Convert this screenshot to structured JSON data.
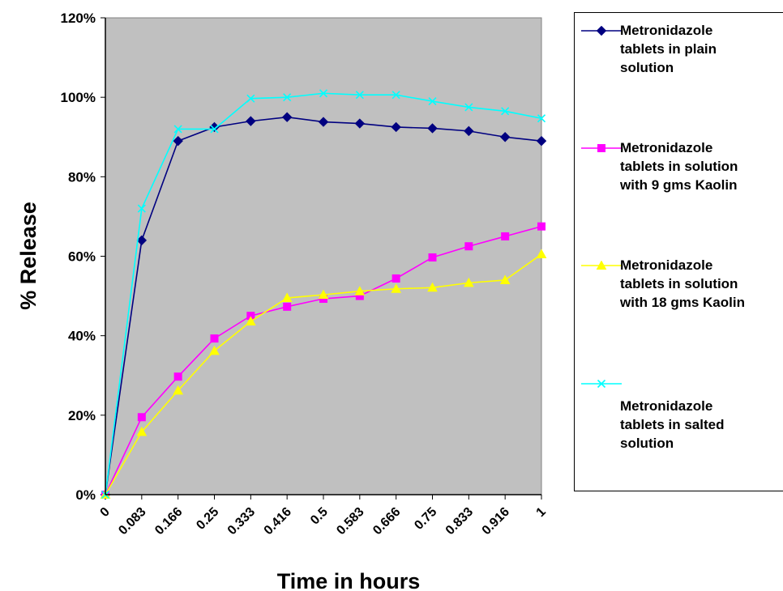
{
  "chart_data": {
    "type": "line",
    "xlabel": "Time in hours",
    "ylabel": "% Release",
    "categories": [
      "0",
      "0.083",
      "0.166",
      "0.25",
      "0.333",
      "0.416",
      "0.5",
      "0.583",
      "0.666",
      "0.75",
      "0.833",
      "0.916",
      "1"
    ],
    "y_ticks": [
      "0%",
      "20%",
      "40%",
      "60%",
      "80%",
      "100%",
      "120%"
    ],
    "ylim": [
      0,
      120
    ],
    "grid": false,
    "plot_background": "#c0c0c0",
    "legend_position": "right",
    "series": [
      {
        "name": "Metronidazole tablets in plain solution",
        "color": "#000080",
        "marker": "diamond",
        "values": [
          0,
          64,
          89,
          92.5,
          94,
          95,
          93.8,
          93.4,
          92.5,
          92.2,
          91.5,
          90,
          89
        ]
      },
      {
        "name": "Metronidazole tablets in solution with 9 gms Kaolin",
        "color": "#ff00ff",
        "marker": "square",
        "values": [
          0,
          19.5,
          29.7,
          39.3,
          45,
          47.3,
          49.3,
          50,
          54.4,
          59.7,
          62.5,
          65,
          67.5
        ]
      },
      {
        "name": "Metronidazole tablets in solution with 18 gms Kaolin",
        "color": "#ffff00",
        "marker": "triangle",
        "values": [
          0,
          15.8,
          26.2,
          36.2,
          43.6,
          49.5,
          50.3,
          51.2,
          51.8,
          52.1,
          53.3,
          54,
          60.5
        ]
      },
      {
        "name": "Metronidazole tablets in salted solution",
        "color": "#00ffff",
        "marker": "x",
        "values": [
          0,
          72,
          92,
          92,
          99.7,
          100,
          101,
          100.6,
          100.6,
          99,
          97.5,
          96.5,
          94.7
        ]
      }
    ]
  },
  "legend": {
    "lines": [
      [
        "Metronidazole",
        "tablets in plain",
        "solution"
      ],
      [
        "Metronidazole",
        "tablets in solution",
        "with 9 gms Kaolin"
      ],
      [
        "Metronidazole",
        "tablets in solution",
        "with 18 gms Kaolin"
      ],
      [
        "Metronidazole",
        "tablets in salted",
        "solution"
      ]
    ]
  }
}
